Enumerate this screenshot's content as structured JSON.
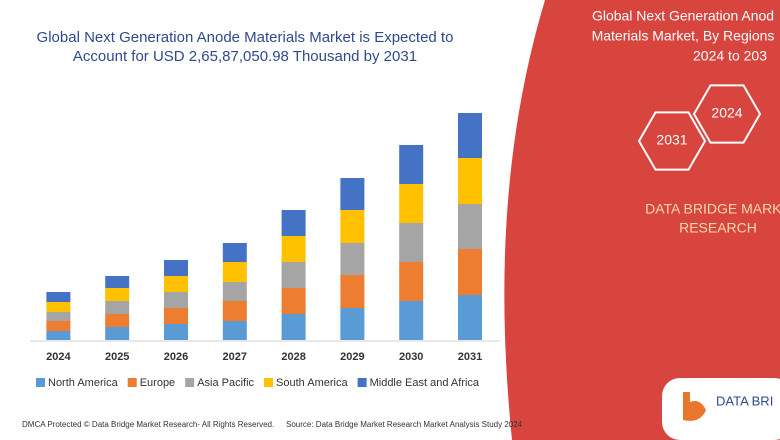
{
  "chart_data": {
    "type": "bar",
    "stacked": true,
    "title_lines": [
      "Global Next Generation Anode Materials Market is Expected to",
      "Account for USD 2,65,87,050.98 Thousand by 2031"
    ],
    "categories": [
      "2024",
      "2025",
      "2026",
      "2027",
      "2028",
      "2029",
      "2030",
      "2031"
    ],
    "series": [
      {
        "name": "North America",
        "color": "#5b9bd5",
        "values": [
          9,
          13,
          16,
          19,
          26,
          32,
          39,
          45
        ]
      },
      {
        "name": "Europe",
        "color": "#ed7d31",
        "values": [
          10,
          13,
          16,
          20,
          26,
          33,
          39,
          46
        ]
      },
      {
        "name": "Asia Pacific",
        "color": "#a5a5a5",
        "values": [
          9,
          13,
          16,
          19,
          26,
          32,
          39,
          45
        ]
      },
      {
        "name": "South America",
        "color": "#ffc000",
        "values": [
          10,
          13,
          16,
          20,
          26,
          33,
          39,
          46
        ]
      },
      {
        "name": "Middle East and Africa",
        "color": "#4472c4",
        "values": [
          10,
          12,
          16,
          19,
          26,
          32,
          39,
          45
        ]
      }
    ]
  },
  "panel": {
    "heading_lines": [
      "Global Next Generation Anod",
      "Materials Market, By Regions",
      "2024 to 203"
    ],
    "badges": [
      "2024",
      "2031"
    ],
    "brand_lines": [
      "DATA BRIDGE MARKE",
      "RESEARCH"
    ]
  },
  "logo": {
    "text": "DATA BRI"
  },
  "footer": {
    "left": "DMCA Protected © Data Bridge Market Research-  All Rights Reserved.",
    "right": "Source: Data Bridge Market Research  Market Analysis Study 2024"
  }
}
